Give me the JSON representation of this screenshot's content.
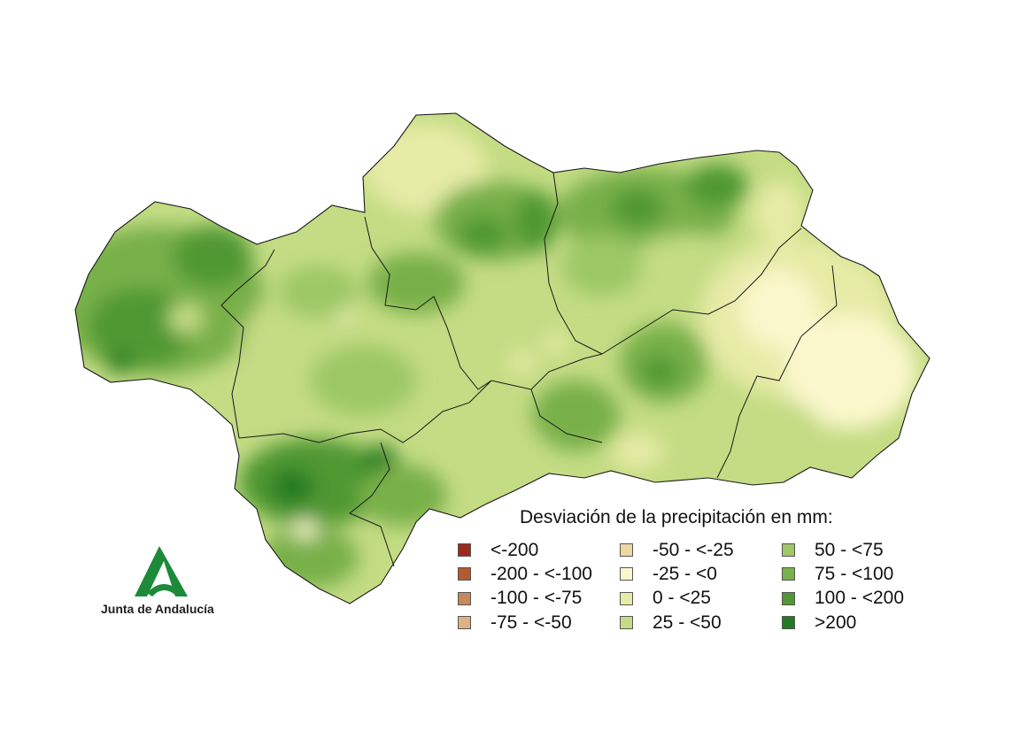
{
  "legend": {
    "title": "Desviación de la precipitación en mm:",
    "classes": [
      {
        "label": "<-200",
        "color": "#9b2a1d"
      },
      {
        "label": "-200 - <-100",
        "color": "#b45a32"
      },
      {
        "label": "-100 - <-75",
        "color": "#c9875c"
      },
      {
        "label": "-75 - <-50",
        "color": "#ddb184"
      },
      {
        "label": "-50 - <-25",
        "color": "#ecd9a2"
      },
      {
        "label": "-25 - <0",
        "color": "#fbf7cc"
      },
      {
        "label": "0 - <25",
        "color": "#e6eba6"
      },
      {
        "label": "25 - <50",
        "color": "#c4dc84"
      },
      {
        "label": "50 - <75",
        "color": "#9dc865"
      },
      {
        "label": "75 - <100",
        "color": "#78b04a"
      },
      {
        "label": "100 - <200",
        "color": "#4f9833"
      },
      {
        "label": ">200",
        "color": "#237a22"
      }
    ]
  },
  "logo": {
    "text": "Junta de Andalucía",
    "color": "#1d8a3a"
  }
}
